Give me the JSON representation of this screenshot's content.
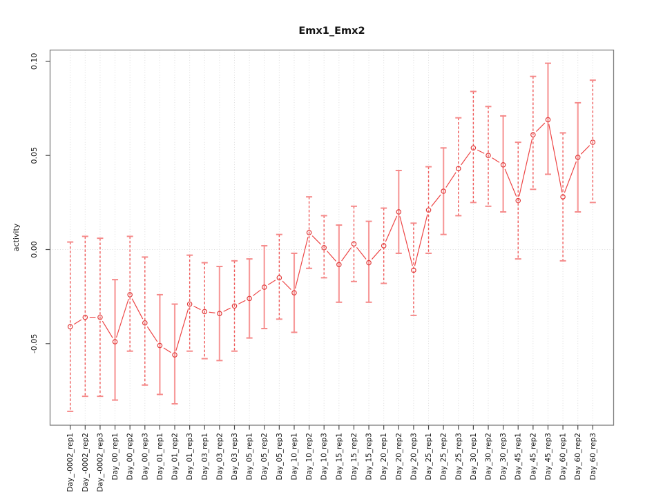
{
  "chart_data": {
    "type": "line",
    "title": "Emx1_Emx2",
    "xlabel": "",
    "ylabel": "activity",
    "legend": "none",
    "grid": "dotted vertical gridline at every category and dotted horizontal line at y=0",
    "ylim": [
      -0.093,
      0.106
    ],
    "ytick_values": [
      0.1,
      0.05,
      0.0,
      -0.05
    ],
    "ytick_labels": [
      "0.10",
      "0.05",
      "0.00",
      "-0.05"
    ],
    "point_marker": "open-circle",
    "error_bars": "caps at upper and lower bounds",
    "categories": [
      "Day_-0002_rep1",
      "Day_-0002_rep2",
      "Day_-0002_rep3",
      "Day_00_rep1",
      "Day_00_rep2",
      "Day_00_rep3",
      "Day_01_rep1",
      "Day_01_rep2",
      "Day_01_rep3",
      "Day_03_rep1",
      "Day_03_rep2",
      "Day_03_rep3",
      "Day_05_rep1",
      "Day_05_rep2",
      "Day_05_rep3",
      "Day_10_rep1",
      "Day_10_rep2",
      "Day_10_rep3",
      "Day_15_rep1",
      "Day_15_rep2",
      "Day_15_rep3",
      "Day_20_rep1",
      "Day_20_rep2",
      "Day_20_rep3",
      "Day_25_rep1",
      "Day_25_rep2",
      "Day_25_rep3",
      "Day_30_rep1",
      "Day_30_rep2",
      "Day_30_rep3",
      "Day_45_rep1",
      "Day_45_rep2",
      "Day_45_rep3",
      "Day_60_rep1",
      "Day_60_rep2",
      "Day_60_rep3"
    ],
    "series": [
      {
        "name": "activity",
        "values": [
          -0.041,
          -0.036,
          -0.036,
          -0.049,
          -0.024,
          -0.039,
          -0.051,
          -0.056,
          -0.029,
          -0.033,
          -0.034,
          -0.03,
          -0.026,
          -0.02,
          -0.015,
          -0.023,
          0.009,
          0.001,
          -0.008,
          0.003,
          -0.007,
          0.002,
          0.02,
          -0.011,
          0.021,
          0.031,
          0.043,
          0.054,
          0.05,
          0.045,
          0.026,
          0.061,
          0.069,
          0.028,
          0.049,
          0.057
        ],
        "upper": [
          0.004,
          0.007,
          0.006,
          -0.016,
          0.007,
          -0.004,
          -0.024,
          -0.029,
          -0.003,
          -0.007,
          -0.009,
          -0.006,
          -0.005,
          0.002,
          0.008,
          -0.002,
          0.028,
          0.018,
          0.013,
          0.023,
          0.015,
          0.022,
          0.042,
          0.014,
          0.044,
          0.054,
          0.07,
          0.084,
          0.076,
          0.071,
          0.057,
          0.092,
          0.099,
          0.062,
          0.078,
          0.09
        ],
        "lower": [
          -0.086,
          -0.078,
          -0.078,
          -0.08,
          -0.054,
          -0.072,
          -0.077,
          -0.082,
          -0.054,
          -0.058,
          -0.059,
          -0.054,
          -0.047,
          -0.042,
          -0.037,
          -0.044,
          -0.01,
          -0.015,
          -0.028,
          -0.017,
          -0.028,
          -0.018,
          -0.002,
          -0.035,
          -0.002,
          0.008,
          0.018,
          0.025,
          0.023,
          0.02,
          -0.005,
          0.032,
          0.04,
          -0.006,
          0.02,
          0.025
        ],
        "bar_styles": [
          "dashed",
          "dashed",
          "dashed",
          "solid",
          "dashed",
          "dashed",
          "solid",
          "solid",
          "dashed",
          "dashed",
          "solid",
          "dashed",
          "solid",
          "solid",
          "dashed",
          "solid",
          "dashed",
          "dashed",
          "solid",
          "dashed",
          "solid",
          "dashed",
          "solid",
          "dashed",
          "dashed",
          "solid",
          "dashed",
          "dashed",
          "dashed",
          "solid",
          "dashed",
          "dashed",
          "solid",
          "dashed",
          "solid",
          "dashed"
        ]
      }
    ]
  },
  "colors": {
    "point": "#e23c3c",
    "series_line": "#ed4545",
    "bar_dashed": "#ef5b5b",
    "bar_solid": "#f79b9b",
    "bar_cap": "#f58a8a",
    "gridline": "#dcdcdc",
    "plot_border": "#7d7d7d",
    "tick": "#4a4a4a",
    "text": "#111111",
    "background": "#ffffff"
  }
}
